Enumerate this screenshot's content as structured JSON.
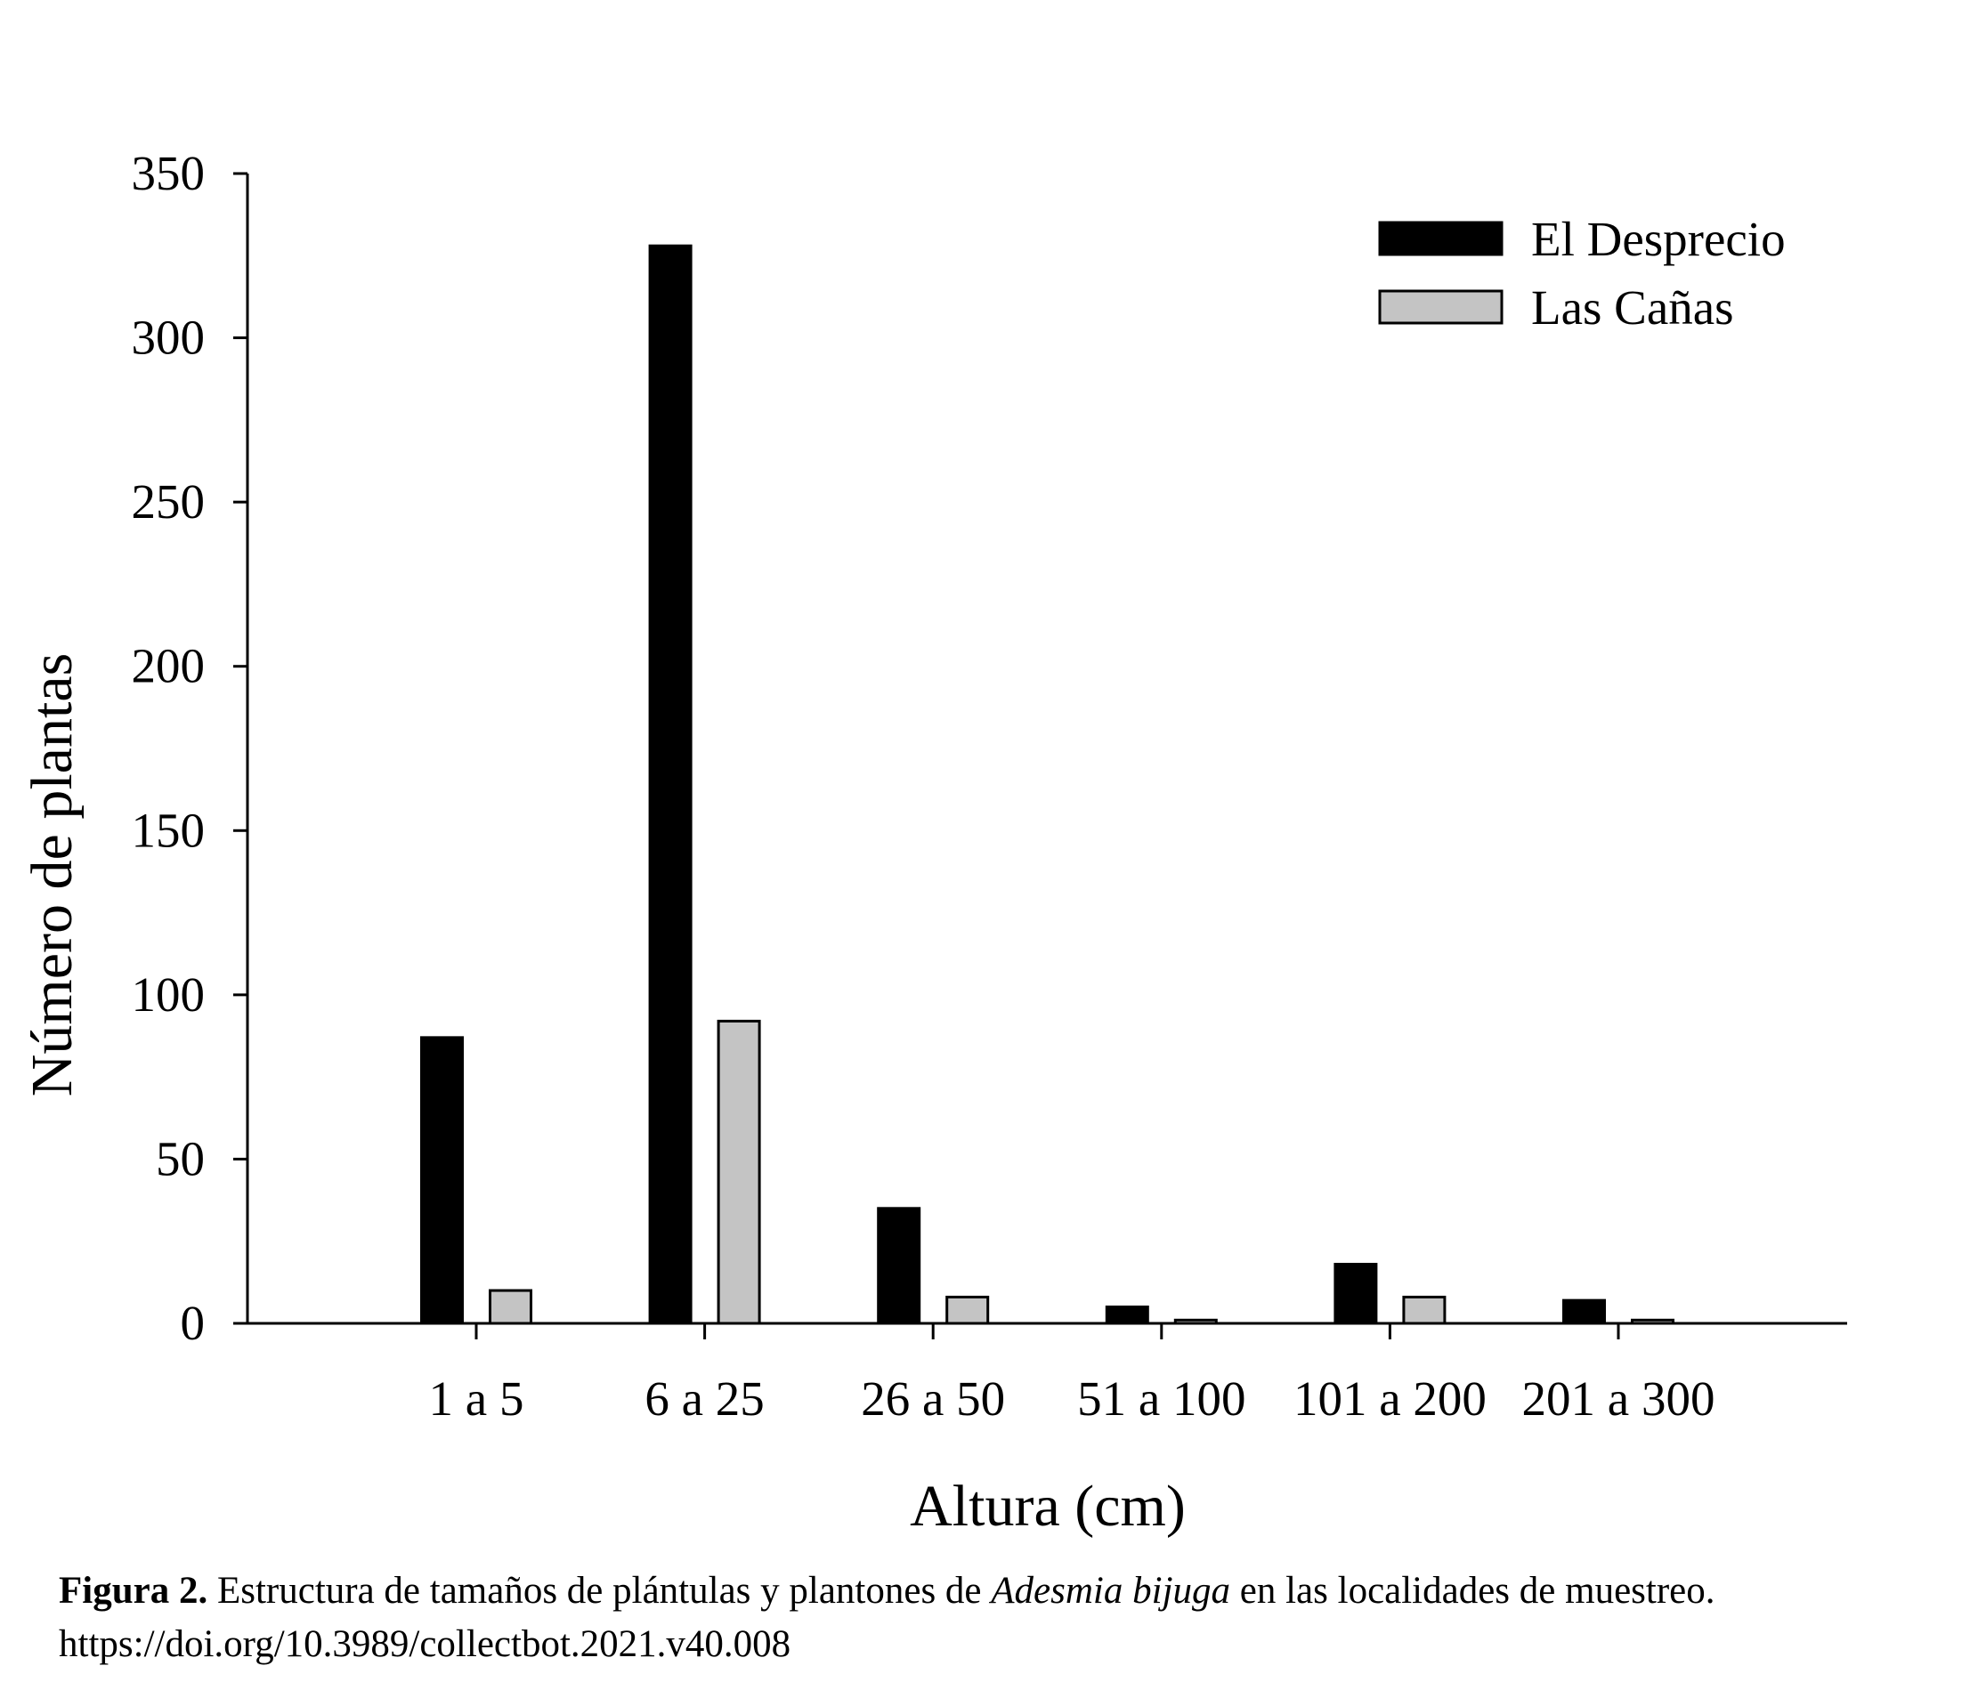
{
  "chart_data": {
    "type": "bar",
    "xlabel": "Altura (cm)",
    "ylabel": "Número de plantas",
    "categories": [
      "1 a 5",
      "6 a 25",
      "26 a 50",
      "51 a 100",
      "101 a 200",
      "201 a 300"
    ],
    "series": [
      {
        "name": "El Desprecio",
        "color": "#000000",
        "values": [
          87,
          328,
          35,
          5,
          18,
          7
        ]
      },
      {
        "name": "Las Cañas",
        "color": "#c4c4c4",
        "values": [
          10,
          92,
          8,
          1,
          8,
          1
        ]
      }
    ],
    "ylim": [
      0,
      350
    ],
    "yticks": [
      "0",
      "50",
      "100",
      "150",
      "200",
      "250",
      "300",
      "350"
    ],
    "grid": false,
    "legend_position": "top-right"
  },
  "caption": {
    "label": "Figura 2.",
    "text_before": " Estructura de tamaños de plántulas y plantones de ",
    "species": "Adesmia bijuga",
    "text_after": " en las localidades de muestreo.",
    "doi": "https://doi.org/10.3989/collectbot.2021.v40.008"
  }
}
